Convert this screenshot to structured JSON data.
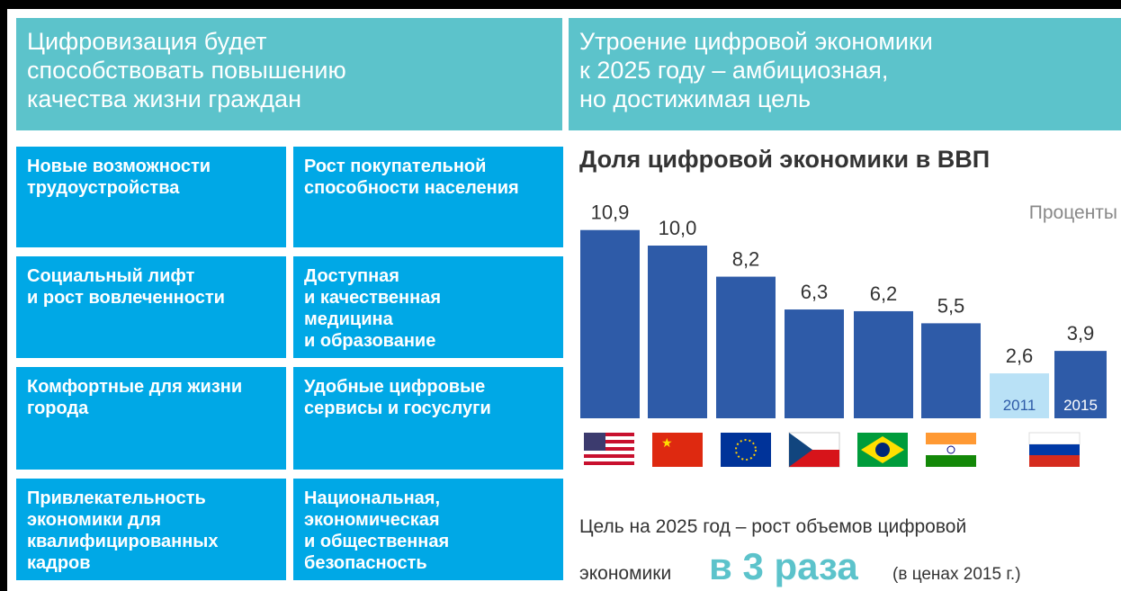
{
  "left_header": "Цифровизация будет\nспособствовать повышению\nкачества жизни граждан",
  "cards": [
    "Новые возможности\nтрудоустройства",
    "Рост покупательной\nспособности населения",
    "Социальный лифт\nи рост вовлеченности",
    "Доступная\nи качественная\nмедицина\nи образование",
    "Комфортные для жизни\nгорода",
    "Удобные цифровые\nсервисы и госуслуги",
    "Привлекательность\nэкономики для\nквалифицированных\nкадров",
    "Национальная,\nэкономическая\nи общественная\nбезопасность"
  ],
  "right_header": "Утроение цифровой экономики\nк 2025 году – амбициозная,\nно достижимая цель",
  "chart_data": {
    "type": "bar",
    "title": "Доля цифровой экономики в ВВП",
    "unit_label": "Проценты",
    "categories": [
      null,
      null,
      null,
      null,
      null,
      null,
      "2011",
      "2015"
    ],
    "values": [
      10.9,
      10.0,
      8.2,
      6.3,
      6.2,
      5.5,
      2.6,
      3.9
    ],
    "value_labels": [
      "10,9",
      "10,0",
      "8,2",
      "6,3",
      "6,2",
      "5,5",
      "2,6",
      "3,9"
    ],
    "colors": [
      "#2e5ba8",
      "#2e5ba8",
      "#2e5ba8",
      "#2e5ba8",
      "#2e5ba8",
      "#2e5ba8",
      "#b9e1f6",
      "#2e5ba8"
    ],
    "ylim": [
      0,
      12
    ]
  },
  "footer": {
    "line1": "Цель на 2025 год – рост объемов цифровой",
    "word": "экономики",
    "highlight": "в 3 раза",
    "note": "(в ценах 2015 г.)"
  }
}
